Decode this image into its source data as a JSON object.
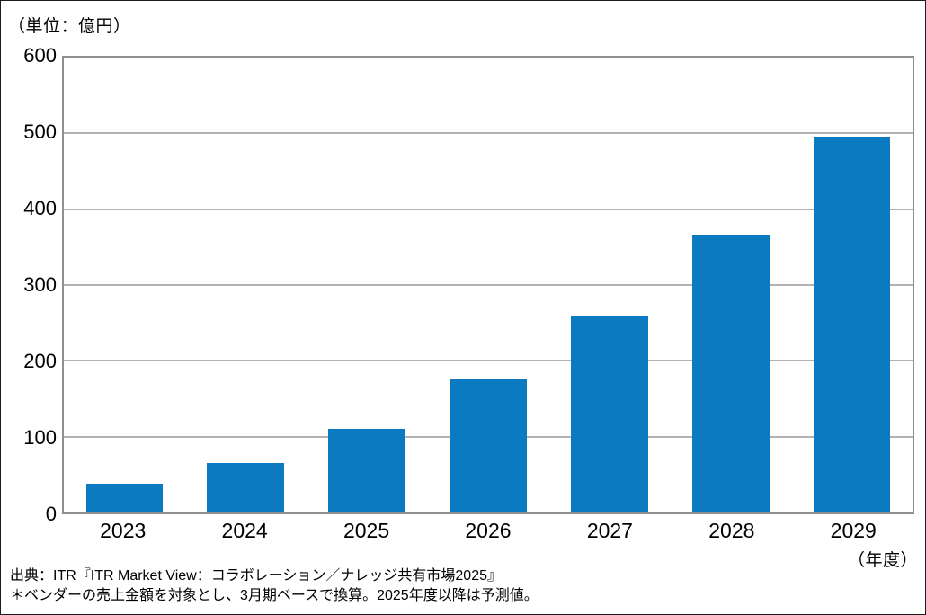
{
  "chart_data": {
    "type": "bar",
    "title": "",
    "unit_label": "（単位：億円）",
    "xlabel": "（年度）",
    "ylabel": "",
    "categories": [
      "2023",
      "2024",
      "2025",
      "2026",
      "2027",
      "2028",
      "2029"
    ],
    "values": [
      38,
      65,
      110,
      176,
      259,
      366,
      496
    ],
    "ylim": [
      0,
      600
    ],
    "yticks": [
      0,
      100,
      200,
      300,
      400,
      500,
      600
    ],
    "grid": true,
    "legend": "none",
    "bar_color": "#0B7AC1",
    "plot_border_color": "#8f8f8f",
    "gridline_color": "#b3b3b3"
  },
  "footer": {
    "source_line": "出典：ITR『ITR Market View：コラボレーション／ナレッジ共有市場2025』",
    "note_line": "＊ベンダーの売上金額を対象とし、3月期ベースで換算。2025年度以降は予測値。"
  }
}
